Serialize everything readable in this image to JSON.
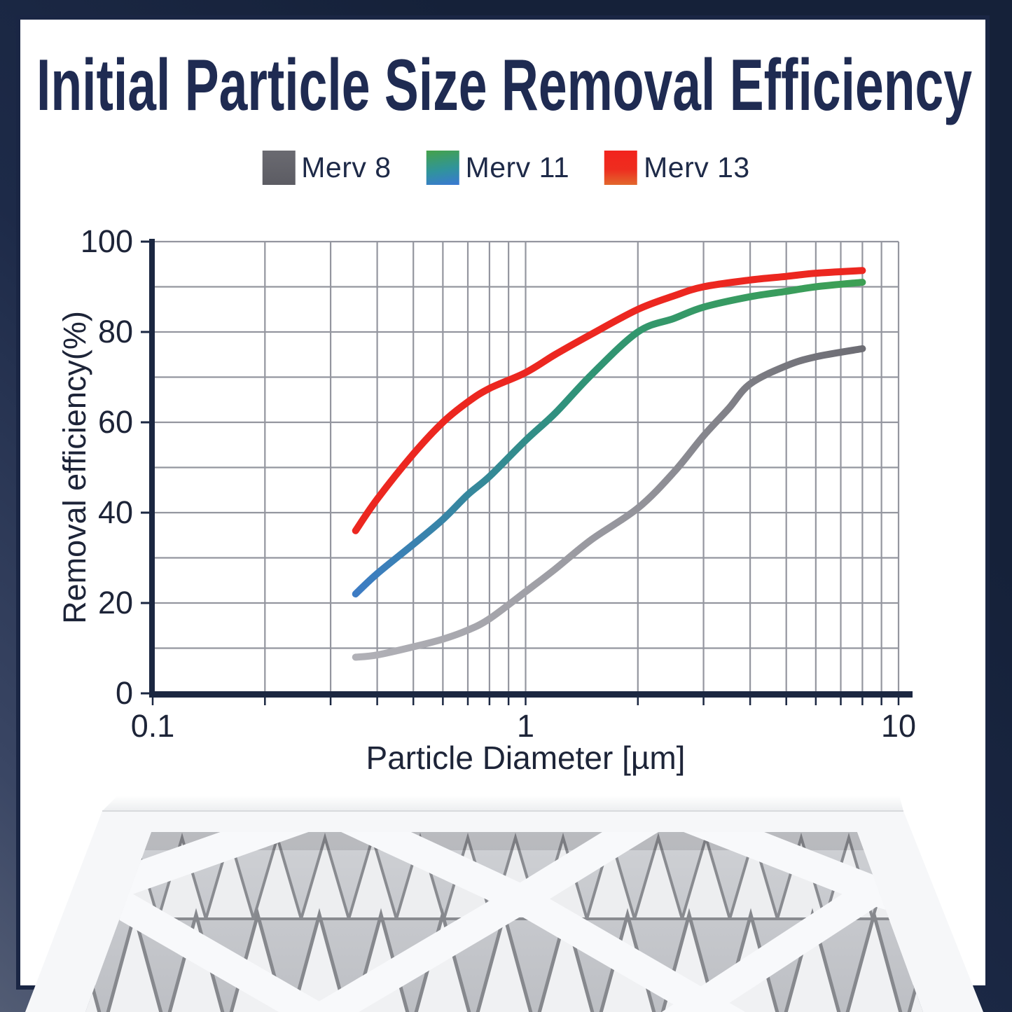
{
  "title": "Initial Particle Size Removal Efficiency",
  "legend": {
    "items": [
      {
        "label": "Merv 8",
        "swatch_colors": [
          "#6a6a71",
          "#5c5c63"
        ]
      },
      {
        "label": "Merv 11",
        "swatch_colors": [
          "#45a24a",
          "#3a78d4"
        ]
      },
      {
        "label": "Merv 13",
        "swatch_colors": [
          "#f2231d",
          "#e2682d"
        ]
      }
    ]
  },
  "colors": {
    "frame_navy": "#1a2644",
    "frame_slate_light": "#525c74",
    "title_navy": "#1f2b52",
    "axis_navy": "#1b2741",
    "gridline_gray": "#94969f",
    "tick_text": "#1d2438",
    "merv8_curve": [
      "#b1b1b7",
      "#96969d",
      "#6d6d74"
    ],
    "merv11_curve": [
      "#3d7cc4",
      "#2f9377",
      "#3da054"
    ],
    "merv13_curve": [
      "#ec2720",
      "#ec2720"
    ]
  },
  "footer_image": {
    "alt": "Pleated HVAC air filter with diamond lattice frame"
  },
  "chart_data": {
    "type": "line",
    "title": "Initial Particle Size Removal Efficiency",
    "xlabel": "Particle Diameter [µm]",
    "ylabel": "Removal efficiency(%)",
    "x_scale": "log",
    "xlim": [
      0.1,
      10
    ],
    "ylim": [
      0,
      100
    ],
    "grid": true,
    "legend_position": "top",
    "x_ticks": [
      {
        "value": 0.1,
        "label": "0.1"
      },
      {
        "value": 1,
        "label": "1"
      },
      {
        "value": 10,
        "label": "10"
      }
    ],
    "y_ticks": [
      {
        "value": 0,
        "label": "0"
      },
      {
        "value": 20,
        "label": "20"
      },
      {
        "value": 40,
        "label": "40"
      },
      {
        "value": 60,
        "label": "60"
      },
      {
        "value": 80,
        "label": "80"
      },
      {
        "value": 100,
        "label": "100"
      }
    ],
    "x_gridlines": [
      0.1,
      0.2,
      0.3,
      0.4,
      0.5,
      0.6,
      0.7,
      0.8,
      0.9,
      1,
      2,
      3,
      4,
      5,
      6,
      7,
      8,
      9,
      10
    ],
    "y_gridlines": [
      0,
      10,
      20,
      30,
      40,
      50,
      60,
      70,
      80,
      90,
      100
    ],
    "series": [
      {
        "name": "Merv 8",
        "colors": [
          "#b1b1b7",
          "#96969d",
          "#6d6d74"
        ],
        "points": [
          [
            0.35,
            8
          ],
          [
            0.4,
            8.5
          ],
          [
            0.5,
            10.3
          ],
          [
            0.6,
            12
          ],
          [
            0.7,
            14
          ],
          [
            0.8,
            16.5
          ],
          [
            1.0,
            22.5
          ],
          [
            1.2,
            27.5
          ],
          [
            1.5,
            34
          ],
          [
            2.0,
            41
          ],
          [
            2.5,
            49
          ],
          [
            3.0,
            57
          ],
          [
            3.5,
            63
          ],
          [
            4.0,
            68.5
          ],
          [
            5.0,
            72.5
          ],
          [
            6.0,
            74.5
          ],
          [
            8.0,
            76.3
          ]
        ]
      },
      {
        "name": "Merv 11",
        "colors": [
          "#3d7cc4",
          "#2f9377",
          "#3da054"
        ],
        "points": [
          [
            0.35,
            22
          ],
          [
            0.4,
            26.5
          ],
          [
            0.5,
            33
          ],
          [
            0.6,
            38.5
          ],
          [
            0.7,
            44
          ],
          [
            0.8,
            48
          ],
          [
            1.0,
            56
          ],
          [
            1.2,
            62
          ],
          [
            1.5,
            70.5
          ],
          [
            2.0,
            80
          ],
          [
            2.5,
            83
          ],
          [
            3.0,
            85.5
          ],
          [
            4.0,
            87.8
          ],
          [
            5.0,
            89
          ],
          [
            6.0,
            90
          ],
          [
            8.0,
            91
          ]
        ]
      },
      {
        "name": "Merv 13",
        "colors": [
          "#ec2720",
          "#ec2720"
        ],
        "points": [
          [
            0.35,
            36
          ],
          [
            0.4,
            43
          ],
          [
            0.5,
            53
          ],
          [
            0.6,
            60
          ],
          [
            0.7,
            64.5
          ],
          [
            0.8,
            67.5
          ],
          [
            1.0,
            71
          ],
          [
            1.2,
            75
          ],
          [
            1.5,
            79.5
          ],
          [
            2.0,
            85
          ],
          [
            2.5,
            88
          ],
          [
            3.0,
            90
          ],
          [
            4.0,
            91.5
          ],
          [
            5.0,
            92.3
          ],
          [
            6.0,
            93
          ],
          [
            8.0,
            93.6
          ]
        ]
      }
    ]
  }
}
